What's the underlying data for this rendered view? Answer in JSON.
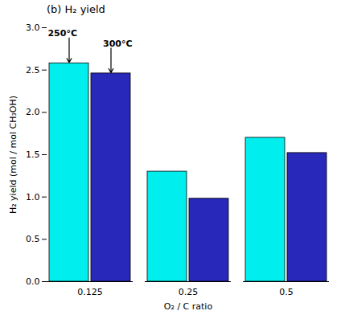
{
  "chart_data": {
    "type": "bar",
    "title": "(b) H₂ yield",
    "xlabel": "O₂ / C ratio",
    "ylabel": "H₂ yield (mol / mol CH₃OH)",
    "categories": [
      "0.125",
      "0.25",
      "0.5"
    ],
    "series": [
      {
        "name": "250°C",
        "color": "#00EEEE",
        "values": [
          2.58,
          1.3,
          1.7
        ]
      },
      {
        "name": "300°C",
        "color": "#2828BB",
        "values": [
          2.46,
          0.98,
          1.52
        ]
      }
    ],
    "ylim": [
      0,
      3
    ],
    "yticks": [
      {
        "value": 0,
        "label": "0.0"
      },
      0.5,
      {
        "value": 1.0,
        "label": "1.0"
      },
      1.5,
      {
        "value": 2.0,
        "label": "2.0"
      },
      2.5,
      {
        "value": 3.0,
        "label": "3.0"
      }
    ],
    "grid": false,
    "annotations": [
      {
        "text": "250°C",
        "category": "0.125",
        "series": "250°C"
      },
      {
        "text": "300°C",
        "category": "0.125",
        "series": "300°C"
      }
    ]
  }
}
